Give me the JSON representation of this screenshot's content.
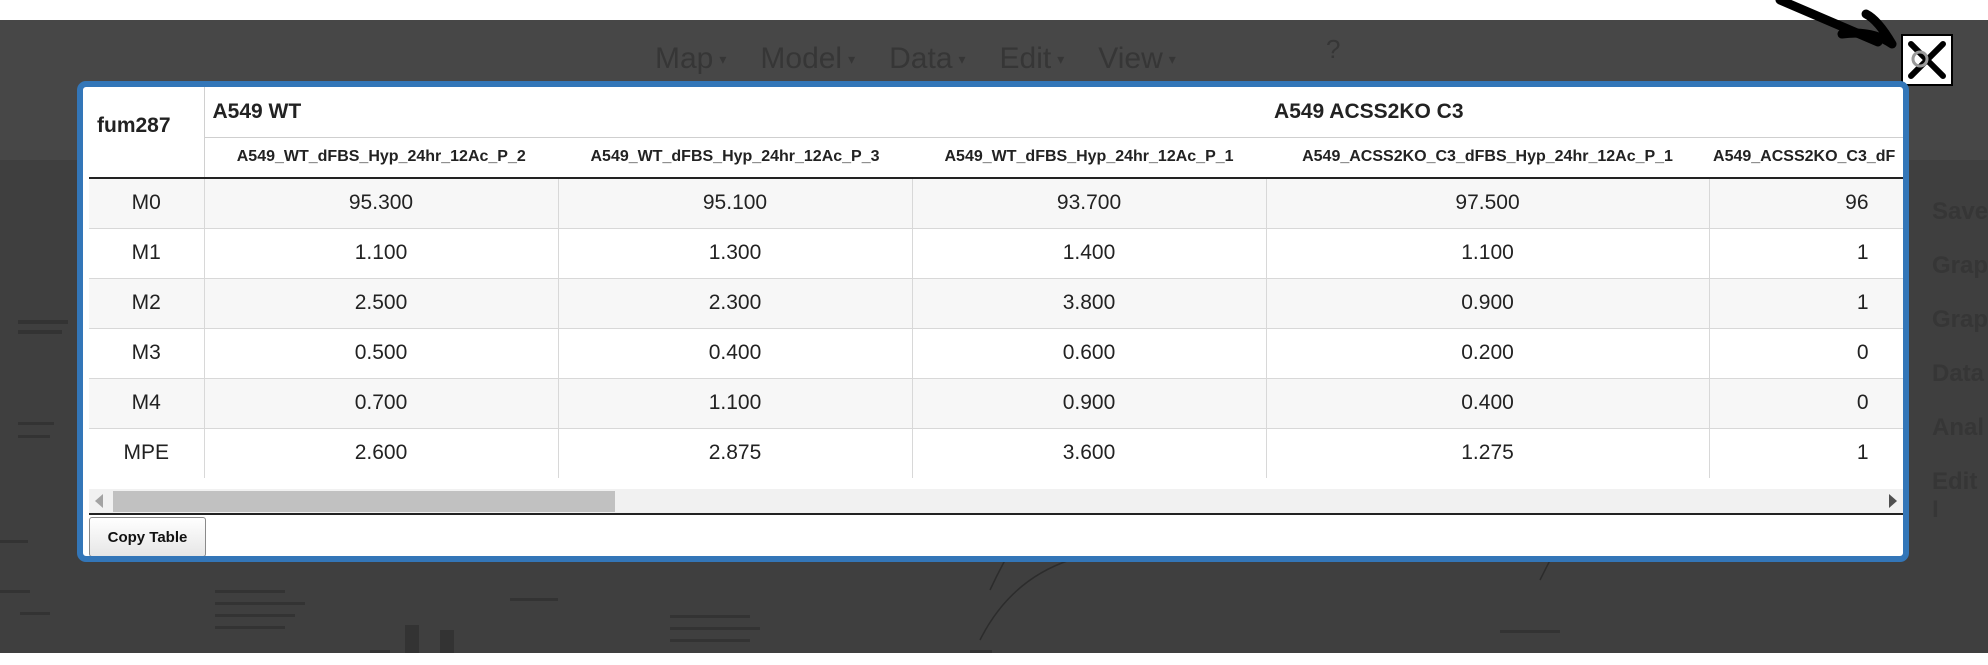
{
  "background_app": {
    "menu": [
      "Map",
      "Model",
      "Data",
      "Edit",
      "View"
    ],
    "help": "?",
    "side_menu": [
      "Save",
      "Grap",
      "Grap",
      "Data",
      "Anal",
      "Edit I"
    ]
  },
  "table": {
    "corner_label": "fum287",
    "groups": [
      {
        "label": "A549 WT",
        "span": 3
      },
      {
        "label": "A549 ACSS2KO C3",
        "span": 2
      }
    ],
    "samples": [
      "A549_WT_dFBS_Hyp_24hr_12Ac_P_2",
      "A549_WT_dFBS_Hyp_24hr_12Ac_P_3",
      "A549_WT_dFBS_Hyp_24hr_12Ac_P_1",
      "A549_ACSS2KO_C3_dFBS_Hyp_24hr_12Ac_P_1",
      "A549_ACSS2KO_C3_dF"
    ],
    "rows": [
      {
        "label": "M0",
        "values": [
          "95.300",
          "95.100",
          "93.700",
          "97.500",
          "96"
        ]
      },
      {
        "label": "M1",
        "values": [
          "1.100",
          "1.300",
          "1.400",
          "1.100",
          "1"
        ]
      },
      {
        "label": "M2",
        "values": [
          "2.500",
          "2.300",
          "3.800",
          "0.900",
          "1"
        ]
      },
      {
        "label": "M3",
        "values": [
          "0.500",
          "0.400",
          "0.600",
          "0.200",
          "0"
        ]
      },
      {
        "label": "M4",
        "values": [
          "0.700",
          "1.100",
          "0.900",
          "0.400",
          "0"
        ]
      },
      {
        "label": "MPE",
        "values": [
          "2.600",
          "2.875",
          "3.600",
          "1.275",
          "1"
        ]
      }
    ]
  },
  "copy_button_label": "Copy Table",
  "icons": {
    "close": "close-icon",
    "pointer": "arrow-cursor-icon",
    "scroll_left": "scroll-left-arrow-icon",
    "scroll_right": "scroll-right-arrow-icon"
  },
  "colors": {
    "modal_border": "#3376b8",
    "overlay": "#3f3f3f"
  }
}
